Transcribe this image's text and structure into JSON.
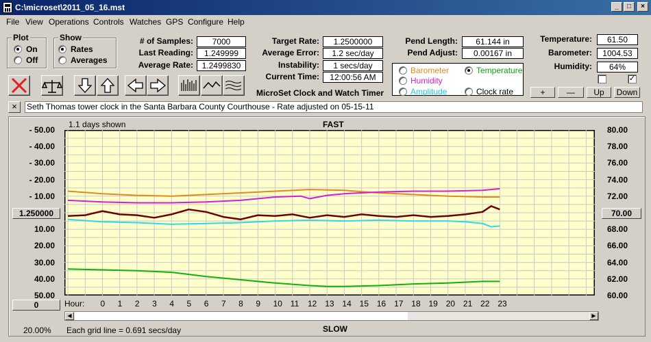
{
  "window": {
    "title": "C:\\microset\\2011_05_16.mst"
  },
  "menu": [
    "File",
    "View",
    "Operations",
    "Controls",
    "Watches",
    "GPS",
    "Configure",
    "Help"
  ],
  "plot_group": {
    "label": "Plot",
    "on": "On",
    "off": "Off",
    "selected": "On"
  },
  "show_group": {
    "label": "Show",
    "rates": "Rates",
    "averages": "Averages",
    "selected": "Rates"
  },
  "stats": {
    "samples_label": "# of Samples:",
    "samples": "7000",
    "last_reading_label": "Last Reading:",
    "last_reading": "1.249999",
    "average_rate_label": "Average Rate:",
    "average_rate": "1.2499830",
    "target_rate_label": "Target Rate:",
    "target_rate": "1.2500000",
    "average_error_label": "Average Error:",
    "average_error": "1.2 sec/day",
    "instability_label": "Instability:",
    "instability": "1 secs/day",
    "current_time_label": "Current Time:",
    "current_time": "12:00:56 AM",
    "pend_length_label": "Pend Length:",
    "pend_length": "61.144 in",
    "pend_adjust_label": "Pend Adjust:",
    "pend_adjust": "0.00167 in",
    "temperature_label": "Temperature:",
    "temperature": "61.50",
    "barometer_label": "Barometer:",
    "barometer": "1004.53",
    "humidity_label": "Humidity:",
    "humidity": "64%"
  },
  "app_name": "MicroSet Clock and Watch Timer",
  "selector": {
    "barometer": "Barometer",
    "temperature": "Temperature",
    "humidity": "Humidity",
    "amplitude": "Amplitude",
    "clock_rate": "Clock rate",
    "selected": "Temperature"
  },
  "right_buttons": {
    "plus": "+",
    "minus": "—",
    "up": "Up",
    "down": "Down"
  },
  "checkboxes": [
    false,
    true
  ],
  "description": "Seth Thomas tower clock in the Santa Barbara County Courthouse - Rate adjusted on 05-15-11",
  "chart": {
    "days_shown": "1.1 days shown",
    "top_label": "FAST",
    "bottom_label": "SLOW",
    "center_value": "1.250000",
    "right_center_value": "70.00",
    "bottom_left_box": "0",
    "zoom": "20.00%",
    "grid_note": "Each grid line = 0.691 secs/day",
    "hour_label": "Hour:",
    "colors": {
      "background": "#ffffcc",
      "barometer": "#e08a1e",
      "humidity": "#d020d0",
      "rate": "#6e0000",
      "amplitude": "#30d8e8",
      "temperature": "#10b010"
    }
  },
  "chart_data": {
    "type": "line",
    "left_axis_ticks": [
      "- 50.00",
      "- 40.00",
      "- 30.00",
      "- 20.00",
      "- 10.00",
      "10.00",
      "20.00",
      "30.00",
      "40.00",
      "50.00"
    ],
    "right_axis_ticks": [
      "80.00",
      "78.00",
      "76.00",
      "74.00",
      "72.00",
      "68.00",
      "66.00",
      "64.00",
      "62.00",
      "60.00"
    ],
    "hours": [
      "0",
      "1",
      "2",
      "3",
      "4",
      "5",
      "6",
      "7",
      "8",
      "9",
      "10",
      "11",
      "12",
      "13",
      "14",
      "15",
      "16",
      "17",
      "18",
      "19",
      "20",
      "21",
      "22",
      "23"
    ],
    "right_ylim": [
      60,
      80
    ],
    "series": [
      {
        "name": "Barometer",
        "color_key": "barometer",
        "x": [
          -2,
          0,
          2,
          4,
          6,
          8,
          10,
          12,
          14,
          16,
          18,
          20,
          22,
          23
        ],
        "y": [
          72.6,
          72.3,
          72.1,
          72.0,
          72.2,
          72.4,
          72.6,
          72.8,
          72.7,
          72.4,
          72.2,
          72.0,
          71.9,
          71.9
        ]
      },
      {
        "name": "Humidity",
        "color_key": "humidity",
        "x": [
          -2,
          0,
          2,
          4,
          6,
          8,
          10,
          11.5,
          12,
          13,
          14,
          16,
          18,
          20,
          22,
          23
        ],
        "y": [
          71.5,
          71.3,
          71.2,
          71.2,
          71.3,
          71.5,
          71.9,
          72.0,
          71.7,
          72.1,
          72.3,
          72.5,
          72.6,
          72.6,
          72.7,
          72.9
        ]
      },
      {
        "name": "Clock rate",
        "color_key": "rate",
        "x": [
          -2,
          -1,
          0,
          1,
          2,
          3,
          4,
          5,
          6,
          7,
          8,
          9,
          10,
          11,
          12,
          13,
          14,
          15,
          16,
          17,
          18,
          19,
          20,
          21,
          22,
          22.5,
          23
        ],
        "y": [
          69.6,
          69.7,
          70.2,
          69.8,
          69.7,
          69.4,
          69.8,
          70.4,
          70.1,
          69.5,
          69.2,
          69.7,
          69.6,
          69.8,
          69.4,
          69.7,
          69.5,
          69.8,
          69.6,
          69.5,
          69.7,
          69.5,
          69.6,
          69.8,
          70.1,
          70.8,
          70.4
        ]
      },
      {
        "name": "Amplitude",
        "color_key": "amplitude",
        "x": [
          -2,
          0,
          2,
          4,
          6,
          8,
          10,
          12,
          14,
          16,
          18,
          20,
          21,
          22,
          22.5,
          23
        ],
        "y": [
          69.2,
          68.9,
          68.8,
          68.6,
          68.7,
          68.8,
          69.0,
          69.1,
          69.0,
          69.1,
          69.0,
          69.0,
          68.9,
          68.7,
          68.3,
          68.4
        ]
      },
      {
        "name": "Temperature",
        "color_key": "temperature",
        "x": [
          -2,
          0,
          2,
          4,
          6,
          8,
          10,
          12,
          13,
          14,
          16,
          18,
          20,
          22,
          23
        ],
        "y": [
          63.2,
          63.1,
          63.0,
          62.8,
          62.3,
          61.9,
          61.5,
          61.2,
          61.1,
          61.1,
          61.2,
          61.4,
          61.5,
          61.7,
          61.7
        ]
      }
    ]
  }
}
